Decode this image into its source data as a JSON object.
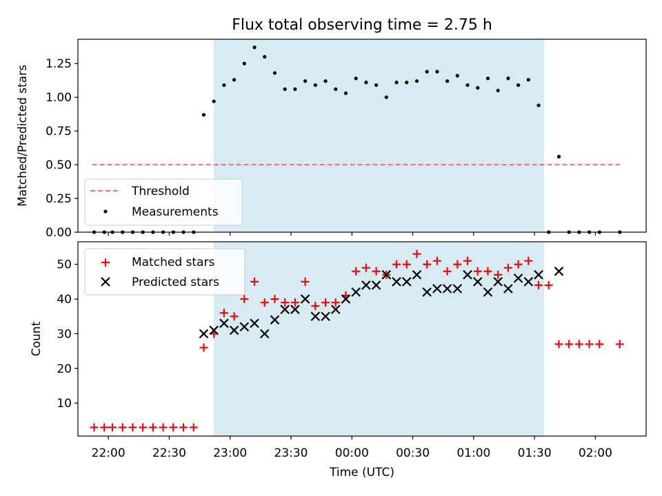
{
  "chart_data": {
    "title": "Flux total observing time = 2.75 h",
    "observing_window": {
      "start": "22:45",
      "end": "01:35",
      "color": "#add8e6"
    },
    "x_axis": {
      "label": "Time (UTC)",
      "range": [
        "21:45",
        "02:25"
      ],
      "ticks": [
        "22:00",
        "22:30",
        "23:00",
        "23:30",
        "00:00",
        "00:30",
        "01:00",
        "01:30",
        "02:00"
      ]
    },
    "panels": [
      {
        "type": "scatter",
        "ylabel": "Matched/Predicted stars",
        "ylim": [
          0,
          1.43
        ],
        "yticks": [
          "0.00",
          "0.25",
          "0.50",
          "0.75",
          "1.00",
          "1.25"
        ],
        "legend": {
          "position": "lower-left",
          "entries": [
            "Threshold",
            "Measurements"
          ]
        },
        "series": [
          {
            "name": "Threshold",
            "kind": "dashed-line",
            "color": "#ff6666",
            "x": [
              "21:52",
              "02:12"
            ],
            "y": [
              0.5,
              0.5
            ]
          },
          {
            "name": "Measurements",
            "kind": "dot",
            "color": "#000000",
            "x": [
              "21:53",
              "21:58",
              "22:02",
              "22:07",
              "22:12",
              "22:17",
              "22:22",
              "22:27",
              "22:32",
              "22:37",
              "22:42",
              "22:47",
              "22:52",
              "22:57",
              "23:02",
              "23:07",
              "23:12",
              "23:17",
              "23:22",
              "23:27",
              "23:32",
              "23:37",
              "23:42",
              "23:47",
              "23:52",
              "23:57",
              "00:02",
              "00:07",
              "00:12",
              "00:17",
              "00:22",
              "00:27",
              "00:32",
              "00:37",
              "00:42",
              "00:47",
              "00:52",
              "00:57",
              "01:02",
              "01:07",
              "01:12",
              "01:17",
              "01:22",
              "01:27",
              "01:32",
              "01:37",
              "01:42",
              "01:47",
              "01:52",
              "01:57",
              "02:02",
              "02:12"
            ],
            "y": [
              0,
              0,
              0,
              0,
              0,
              0,
              0,
              0,
              0,
              0,
              0,
              0.87,
              0.97,
              1.09,
              1.13,
              1.25,
              1.37,
              1.3,
              1.18,
              1.06,
              1.06,
              1.12,
              1.09,
              1.12,
              1.06,
              1.03,
              1.14,
              1.11,
              1.09,
              1.0,
              1.11,
              1.11,
              1.12,
              1.19,
              1.19,
              1.12,
              1.16,
              1.09,
              1.07,
              1.14,
              1.05,
              1.14,
              1.09,
              1.13,
              0.94,
              0,
              0.56,
              0,
              0,
              0,
              0,
              0
            ]
          }
        ]
      },
      {
        "type": "scatter",
        "ylabel": "Count",
        "ylim": [
          0.5,
          56.5
        ],
        "yticks": [
          "10",
          "20",
          "30",
          "40",
          "50"
        ],
        "legend": {
          "position": "upper-left",
          "entries": [
            "Matched stars",
            "Predicted stars"
          ]
        },
        "series": [
          {
            "name": "Matched stars",
            "kind": "plus",
            "color": "#ff0000",
            "x": [
              "21:53",
              "21:58",
              "22:02",
              "22:07",
              "22:12",
              "22:17",
              "22:22",
              "22:27",
              "22:32",
              "22:37",
              "22:42",
              "22:47",
              "22:52",
              "22:57",
              "23:02",
              "23:07",
              "23:12",
              "23:17",
              "23:22",
              "23:27",
              "23:32",
              "23:37",
              "23:42",
              "23:47",
              "23:52",
              "23:57",
              "00:02",
              "00:07",
              "00:12",
              "00:17",
              "00:22",
              "00:27",
              "00:32",
              "00:37",
              "00:42",
              "00:47",
              "00:52",
              "00:57",
              "01:02",
              "01:07",
              "01:12",
              "01:17",
              "01:22",
              "01:27",
              "01:32",
              "01:37",
              "01:42",
              "01:47",
              "01:52",
              "01:57",
              "02:02",
              "02:12"
            ],
            "y": [
              3,
              3,
              3,
              3,
              3,
              3,
              3,
              3,
              3,
              3,
              3,
              26,
              30,
              36,
              35,
              40,
              45,
              39,
              40,
              39,
              39,
              45,
              38,
              39,
              39,
              41,
              48,
              49,
              48,
              47,
              50,
              50,
              53,
              50,
              51,
              48,
              50,
              51,
              48,
              48,
              47,
              49,
              50,
              51,
              44,
              44,
              27,
              27,
              27,
              27,
              27,
              27
            ]
          },
          {
            "name": "Predicted stars",
            "kind": "x",
            "color": "#000000",
            "x": [
              "22:47",
              "22:52",
              "22:57",
              "23:02",
              "23:07",
              "23:12",
              "23:17",
              "23:22",
              "23:27",
              "23:32",
              "23:37",
              "23:42",
              "23:47",
              "23:52",
              "23:57",
              "00:02",
              "00:07",
              "00:12",
              "00:17",
              "00:22",
              "00:27",
              "00:32",
              "00:37",
              "00:42",
              "00:47",
              "00:52",
              "00:57",
              "01:02",
              "01:07",
              "01:12",
              "01:17",
              "01:22",
              "01:27",
              "01:32",
              "01:42"
            ],
            "y": [
              30,
              31,
              33,
              31,
              32,
              33,
              30,
              34,
              37,
              37,
              40,
              35,
              35,
              37,
              40,
              42,
              44,
              44,
              47,
              45,
              45,
              47,
              42,
              43,
              43,
              43,
              47,
              45,
              42,
              45,
              43,
              46,
              45,
              47,
              48
            ]
          }
        ]
      }
    ]
  }
}
